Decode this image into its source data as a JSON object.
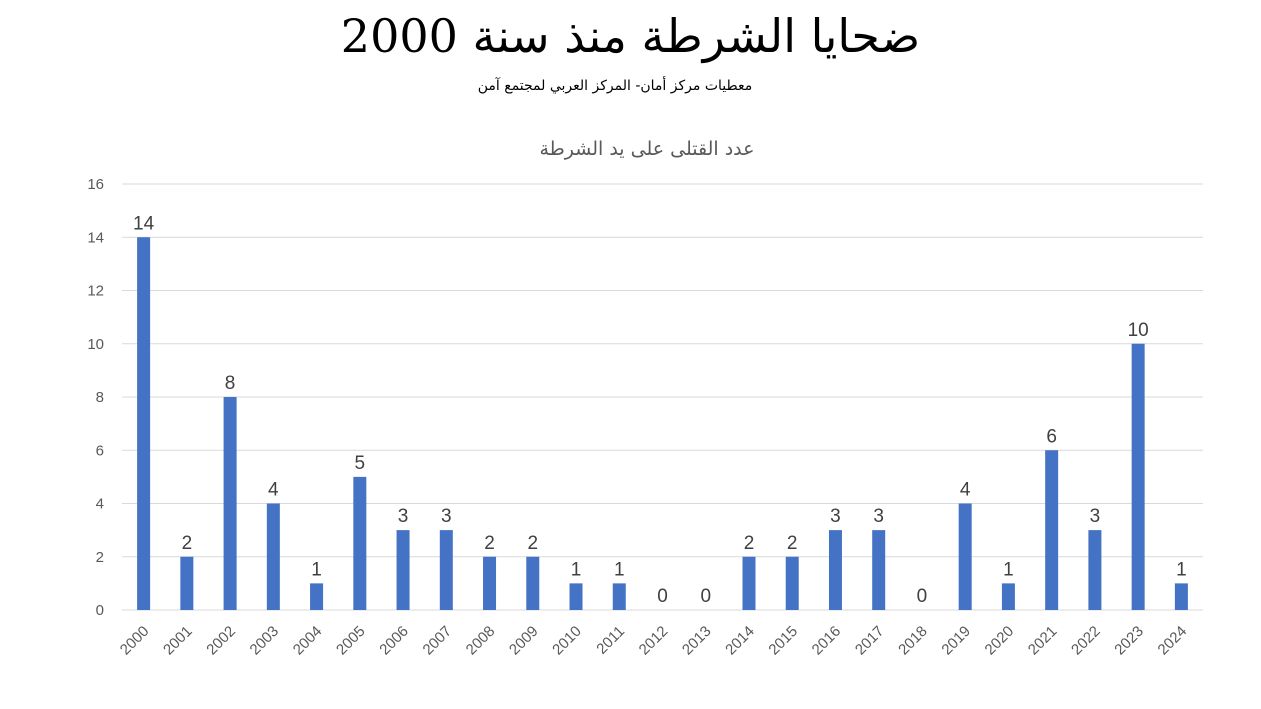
{
  "page": {
    "title": "ضحايا الشرطة منذ سنة 2000",
    "subtitle": "معطيات مركز أمان- المركز العربي لمجتمع آمن"
  },
  "colors": {
    "bar": "#4472C4",
    "grid": "#D9D9D9",
    "axis": "#D9D9D9",
    "text": "#595959"
  },
  "chart_data": {
    "type": "bar",
    "title": "عدد القتلى على يد الشرطة",
    "categories": [
      "2000",
      "2001",
      "2002",
      "2003",
      "2004",
      "2005",
      "2006",
      "2007",
      "2008",
      "2009",
      "2010",
      "2011",
      "2012",
      "2013",
      "2014",
      "2015",
      "2016",
      "2017",
      "2018",
      "2019",
      "2020",
      "2021",
      "2022",
      "2023",
      "2024"
    ],
    "values": [
      14,
      2,
      8,
      4,
      1,
      5,
      3,
      3,
      2,
      2,
      1,
      1,
      0,
      0,
      2,
      2,
      3,
      3,
      0,
      4,
      1,
      6,
      3,
      10,
      1
    ],
    "ylim": [
      0,
      16
    ],
    "yticks": [
      0,
      2,
      4,
      6,
      8,
      10,
      12,
      14,
      16
    ],
    "xlabel": "",
    "ylabel": "",
    "grid": true,
    "data_labels": true,
    "x_tick_rotation_deg": -45
  }
}
